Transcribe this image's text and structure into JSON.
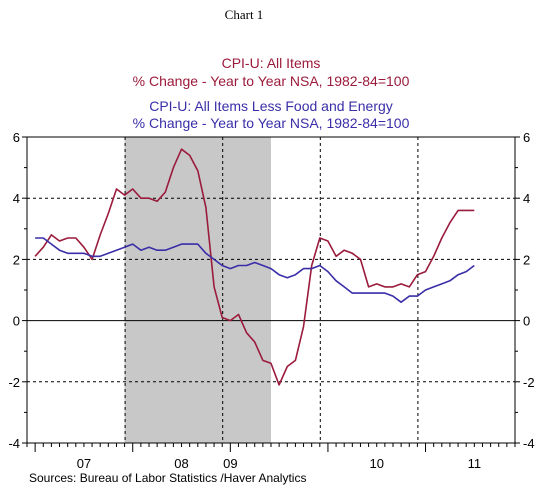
{
  "header": {
    "label": "Chart 1"
  },
  "chart_data": {
    "type": "line",
    "title_lines": [
      {
        "text": "CPI-U: All Items",
        "color": "#9b1b3c"
      },
      {
        "text": "% Change - Year to Year    NSA, 1982-84=100",
        "color": "#9b1b3c"
      },
      {
        "text": "CPI-U: All Items Less Food and Energy",
        "color": "#3a2ea8"
      },
      {
        "text": "% Change - Year to Year    NSA, 1982-84=100",
        "color": "#3a2ea8"
      }
    ],
    "source": "Sources:  Bureau of Labor Statistics /Haver Analytics",
    "x_range": [
      "2006-12",
      "2011-12"
    ],
    "ylim": [
      -4,
      6
    ],
    "y_ticks": [
      -4,
      -2,
      0,
      2,
      4,
      6
    ],
    "y_tick_labels": [
      "-4",
      "-2",
      "0",
      "2",
      "4",
      "6"
    ],
    "x_tick_labels": [
      {
        "label": "07",
        "x": "2007-07"
      },
      {
        "label": "08",
        "x": "2008-07"
      },
      {
        "label": "09",
        "x": "2009-01"
      },
      {
        "label": "10",
        "x": "2010-07"
      },
      {
        "label": "11",
        "x": "2011-07"
      }
    ],
    "shaded_period": {
      "start": "2007-12",
      "end": "2009-06",
      "color": "#c8c8c8"
    },
    "grid": true,
    "series": [
      {
        "color": "#9b1b3c",
        "points": [
          [
            "2007-01",
            2.1
          ],
          [
            "2007-02",
            2.4
          ],
          [
            "2007-03",
            2.8
          ],
          [
            "2007-04",
            2.6
          ],
          [
            "2007-05",
            2.7
          ],
          [
            "2007-06",
            2.7
          ],
          [
            "2007-07",
            2.4
          ],
          [
            "2007-08",
            2.0
          ],
          [
            "2007-09",
            2.8
          ],
          [
            "2007-10",
            3.5
          ],
          [
            "2007-11",
            4.3
          ],
          [
            "2007-12",
            4.1
          ],
          [
            "2008-01",
            4.3
          ],
          [
            "2008-02",
            4.0
          ],
          [
            "2008-03",
            4.0
          ],
          [
            "2008-04",
            3.9
          ],
          [
            "2008-05",
            4.2
          ],
          [
            "2008-06",
            5.0
          ],
          [
            "2008-07",
            5.6
          ],
          [
            "2008-08",
            5.4
          ],
          [
            "2008-09",
            4.9
          ],
          [
            "2008-10",
            3.7
          ],
          [
            "2008-11",
            1.1
          ],
          [
            "2008-12",
            0.1
          ],
          [
            "2009-01",
            0.0
          ],
          [
            "2009-02",
            0.2
          ],
          [
            "2009-03",
            -0.4
          ],
          [
            "2009-04",
            -0.7
          ],
          [
            "2009-05",
            -1.3
          ],
          [
            "2009-06",
            -1.4
          ],
          [
            "2009-07",
            -2.1
          ],
          [
            "2009-08",
            -1.5
          ],
          [
            "2009-09",
            -1.3
          ],
          [
            "2009-10",
            -0.2
          ],
          [
            "2009-11",
            1.8
          ],
          [
            "2009-12",
            2.7
          ],
          [
            "2010-01",
            2.6
          ],
          [
            "2010-02",
            2.1
          ],
          [
            "2010-03",
            2.3
          ],
          [
            "2010-04",
            2.2
          ],
          [
            "2010-05",
            2.0
          ],
          [
            "2010-06",
            1.1
          ],
          [
            "2010-07",
            1.2
          ],
          [
            "2010-08",
            1.1
          ],
          [
            "2010-09",
            1.1
          ],
          [
            "2010-10",
            1.2
          ],
          [
            "2010-11",
            1.1
          ],
          [
            "2010-12",
            1.5
          ],
          [
            "2011-01",
            1.6
          ],
          [
            "2011-02",
            2.1
          ],
          [
            "2011-03",
            2.7
          ],
          [
            "2011-04",
            3.2
          ],
          [
            "2011-05",
            3.6
          ],
          [
            "2011-06",
            3.6
          ],
          [
            "2011-07",
            3.6
          ]
        ]
      },
      {
        "color": "#3a2ea8",
        "points": [
          [
            "2007-01",
            2.7
          ],
          [
            "2007-02",
            2.7
          ],
          [
            "2007-03",
            2.5
          ],
          [
            "2007-04",
            2.3
          ],
          [
            "2007-05",
            2.2
          ],
          [
            "2007-06",
            2.2
          ],
          [
            "2007-07",
            2.2
          ],
          [
            "2007-08",
            2.1
          ],
          [
            "2007-09",
            2.1
          ],
          [
            "2007-10",
            2.2
          ],
          [
            "2007-11",
            2.3
          ],
          [
            "2007-12",
            2.4
          ],
          [
            "2008-01",
            2.5
          ],
          [
            "2008-02",
            2.3
          ],
          [
            "2008-03",
            2.4
          ],
          [
            "2008-04",
            2.3
          ],
          [
            "2008-05",
            2.3
          ],
          [
            "2008-06",
            2.4
          ],
          [
            "2008-07",
            2.5
          ],
          [
            "2008-08",
            2.5
          ],
          [
            "2008-09",
            2.5
          ],
          [
            "2008-10",
            2.2
          ],
          [
            "2008-11",
            2.0
          ],
          [
            "2008-12",
            1.8
          ],
          [
            "2009-01",
            1.7
          ],
          [
            "2009-02",
            1.8
          ],
          [
            "2009-03",
            1.8
          ],
          [
            "2009-04",
            1.9
          ],
          [
            "2009-05",
            1.8
          ],
          [
            "2009-06",
            1.7
          ],
          [
            "2009-07",
            1.5
          ],
          [
            "2009-08",
            1.4
          ],
          [
            "2009-09",
            1.5
          ],
          [
            "2009-10",
            1.7
          ],
          [
            "2009-11",
            1.7
          ],
          [
            "2009-12",
            1.8
          ],
          [
            "2010-01",
            1.6
          ],
          [
            "2010-02",
            1.3
          ],
          [
            "2010-03",
            1.1
          ],
          [
            "2010-04",
            0.9
          ],
          [
            "2010-05",
            0.9
          ],
          [
            "2010-06",
            0.9
          ],
          [
            "2010-07",
            0.9
          ],
          [
            "2010-08",
            0.9
          ],
          [
            "2010-09",
            0.8
          ],
          [
            "2010-10",
            0.6
          ],
          [
            "2010-11",
            0.8
          ],
          [
            "2010-12",
            0.8
          ],
          [
            "2011-01",
            1.0
          ],
          [
            "2011-02",
            1.1
          ],
          [
            "2011-03",
            1.2
          ],
          [
            "2011-04",
            1.3
          ],
          [
            "2011-05",
            1.5
          ],
          [
            "2011-06",
            1.6
          ],
          [
            "2011-07",
            1.8
          ]
        ]
      }
    ]
  }
}
